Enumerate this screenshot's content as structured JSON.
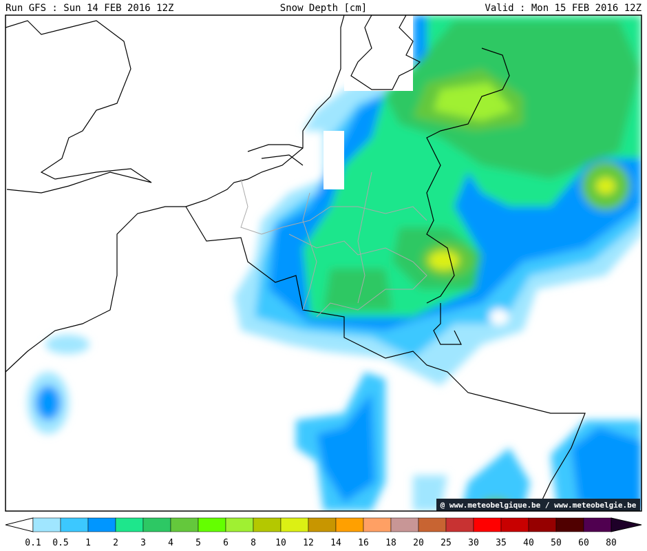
{
  "header": {
    "left": "Run GFS : Sun 14 FEB 2016 12Z",
    "center": "Snow Depth [cm]",
    "right": "Valid : Mon 15 FEB 2016 12Z"
  },
  "watermark": "@ www.meteobelgique.be / www.meteobelgie.be",
  "legend": {
    "levels": [
      0.1,
      0.5,
      1,
      2,
      3,
      4,
      5,
      6,
      8,
      10,
      12,
      14,
      16,
      18,
      20,
      25,
      30,
      35,
      40,
      50,
      60,
      80
    ],
    "colors": [
      "#a0e6ff",
      "#3cc8ff",
      "#0096ff",
      "#1ee68c",
      "#2dc864",
      "#64c83c",
      "#64ff00",
      "#a0f032",
      "#b4c800",
      "#dcf014",
      "#c89600",
      "#ffa000",
      "#ffa064",
      "#c89696",
      "#c86432",
      "#c83232",
      "#ff0000",
      "#c80000",
      "#960000",
      "#500000",
      "#500050"
    ],
    "under_color": "#ffffff",
    "over_color": "#1e0028"
  }
}
